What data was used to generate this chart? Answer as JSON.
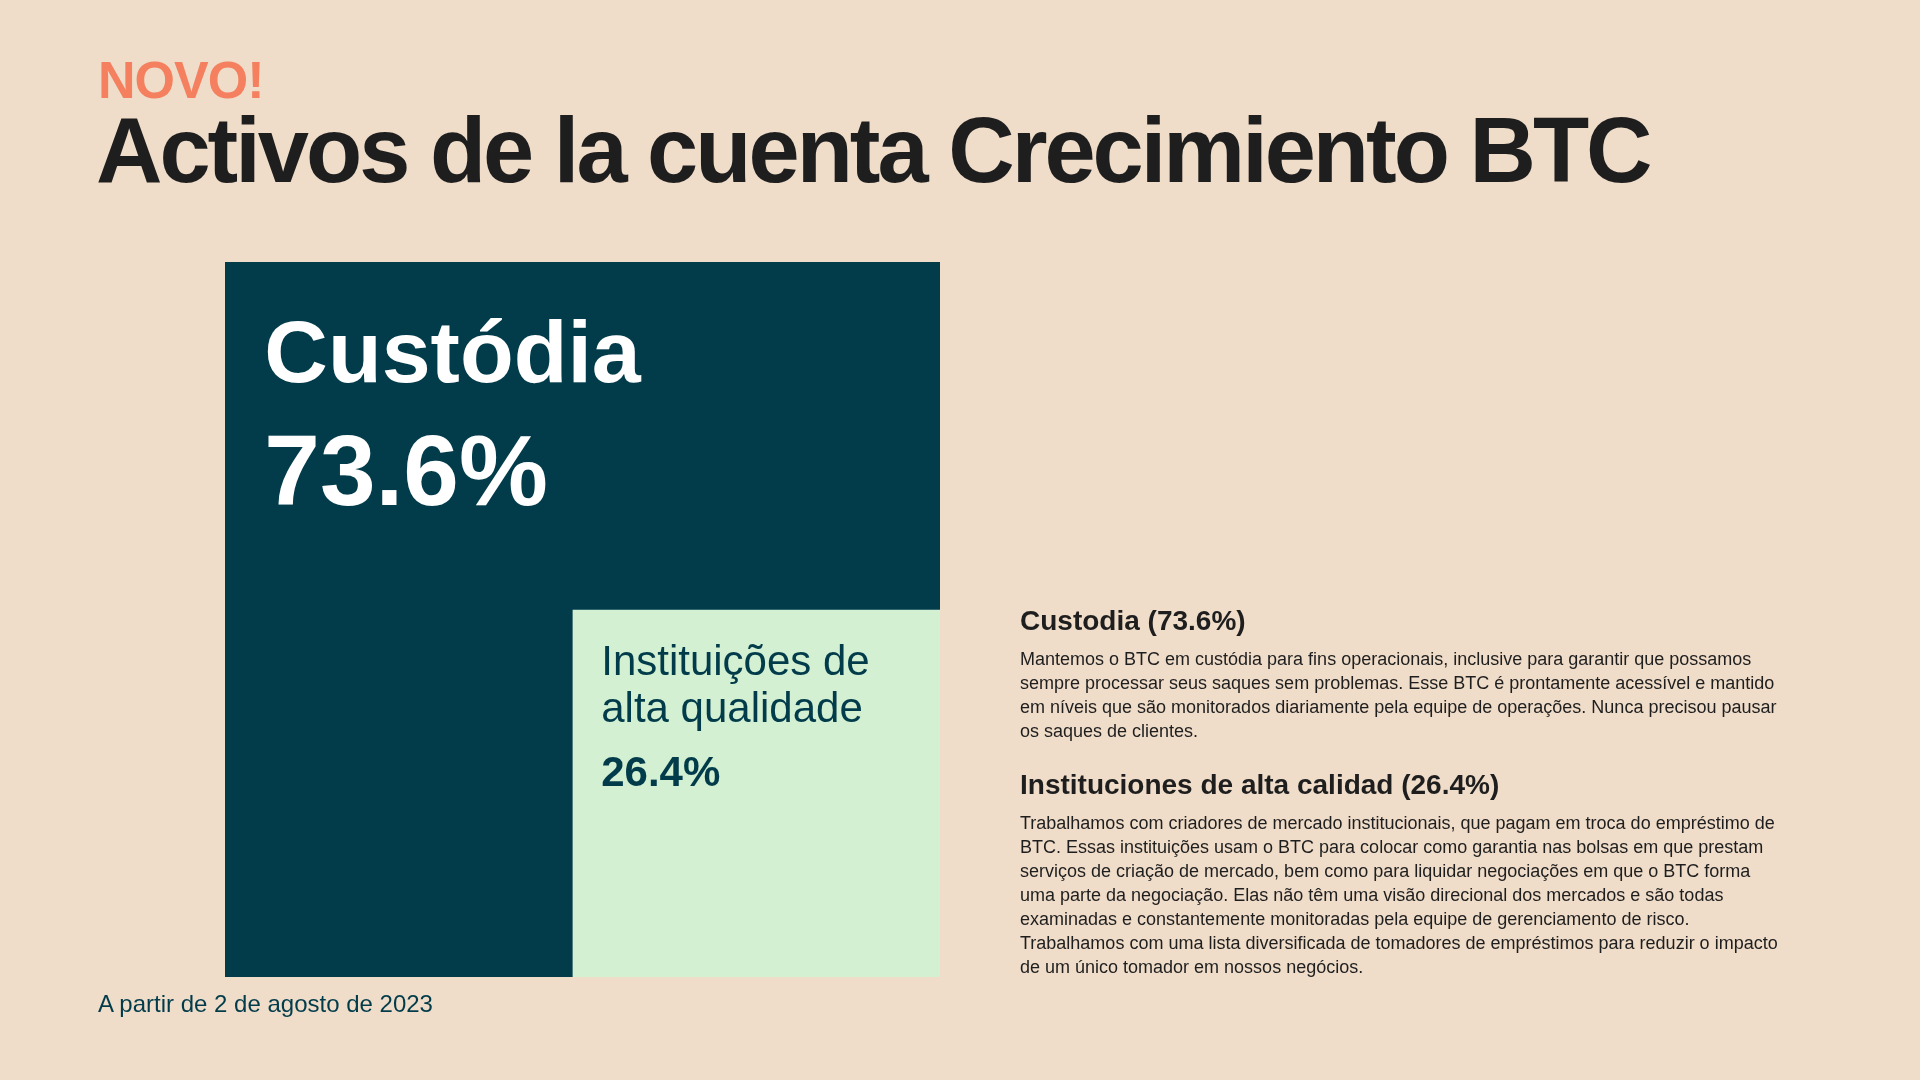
{
  "chart_data": {
    "type": "other",
    "title": "Activos de la cuenta Crecimiento BTC",
    "categories": [
      "Custódia",
      "Instituições de alta qualidade"
    ],
    "values": [
      73.6,
      26.4
    ],
    "value_labels": [
      "73.6%",
      "26.4%"
    ],
    "colors": [
      "#023c4b",
      "#d4f0d2"
    ],
    "annotations": [
      "NOVO!",
      "Custodia (73.6%)",
      "Mantemos o BTC em custódia para fins operacionais, inclusive para garantir que possamos sempre processar seus saques sem problemas. Esse BTC é prontamente acessível e mantido em níveis que são monitorados diariamente pela equipe de operações. Nunca precisou pausar os saques de clientes.",
      "Instituciones de alta calidad (26.4%)",
      "Trabalhamos com criadores de mercado institucionais, que pagam em troca do empréstimo de BTC. Essas instituições usam o BTC para colocar como garantia nas bolsas em que prestam serviços de criação de mercado, bem como para liquidar negociações em que o BTC forma uma parte da negociação. Elas não têm uma visão direcional dos mercados e são todas examinadas e constantemente monitoradas pela equipe de gerenciamento de risco. Trabalhamos com uma lista diversificada de tomadores de empréstimos para reduzir o impacto de um único tomador em nossos negócios.",
      "A partir de 2 de agosto de 2023"
    ]
  }
}
